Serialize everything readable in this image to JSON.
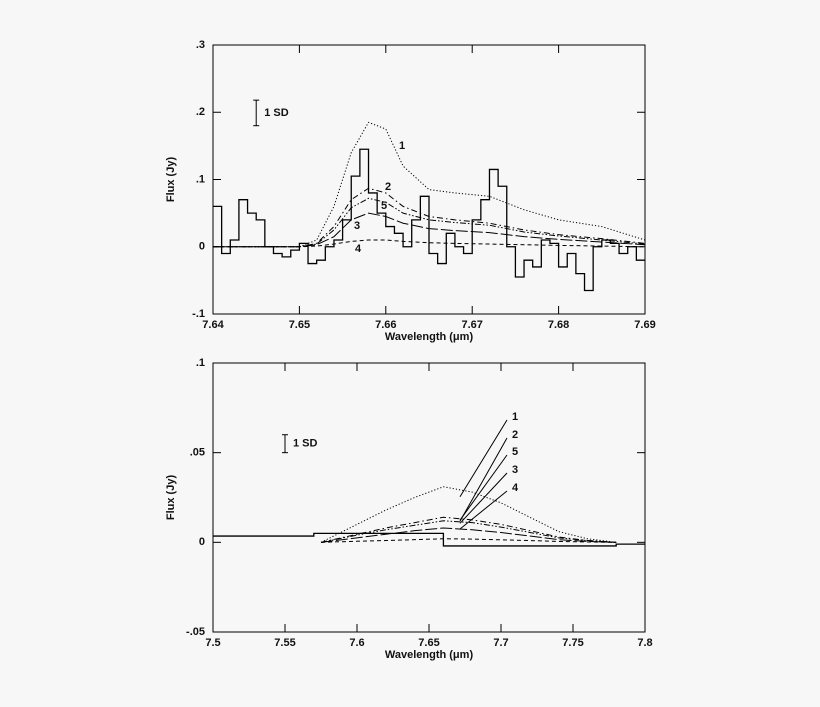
{
  "chart_data": [
    {
      "type": "line",
      "xlabel": "Wavelength (μm)",
      "ylabel": "Flux (Jy)",
      "xlim": [
        7.64,
        7.69
      ],
      "ylim": [
        -0.1,
        0.3
      ],
      "xticks": [
        7.64,
        7.65,
        7.66,
        7.67,
        7.68,
        7.69
      ],
      "yticks": [
        {
          "value": 0.3,
          "label": ".3"
        },
        {
          "value": 0.2,
          "label": ".2"
        },
        {
          "value": 0.1,
          "label": ".1"
        },
        0,
        {
          "value": -0.1,
          "label": "-.1"
        }
      ],
      "series": [
        {
          "style": "steps",
          "color": "#000000",
          "x": [
            7.64,
            7.641,
            7.642,
            7.643,
            7.644,
            7.645,
            7.646,
            7.647,
            7.648,
            7.649,
            7.65,
            7.651,
            7.652,
            7.653,
            7.654,
            7.655,
            7.656,
            7.657,
            7.658,
            7.659,
            7.66,
            7.661,
            7.662,
            7.663,
            7.664,
            7.665,
            7.666,
            7.667,
            7.668,
            7.669,
            7.67,
            7.671,
            7.672,
            7.673,
            7.674,
            7.675,
            7.676,
            7.677,
            7.678,
            7.679,
            7.68,
            7.681,
            7.682,
            7.683,
            7.684,
            7.685,
            7.686,
            7.687,
            7.688,
            7.689
          ],
          "values": [
            0.06,
            -0.01,
            0.01,
            0.07,
            0.05,
            0.04,
            0.0,
            -0.01,
            -0.015,
            -0.005,
            0.005,
            -0.025,
            -0.02,
            0.0,
            0.01,
            0.04,
            0.105,
            0.145,
            0.08,
            0.05,
            0.03,
            0.02,
            0.0,
            0.04,
            0.075,
            -0.01,
            -0.025,
            0.02,
            0.0,
            -0.01,
            0.04,
            0.07,
            0.115,
            0.09,
            0.0,
            -0.045,
            -0.02,
            -0.03,
            0.01,
            0.005,
            -0.03,
            -0.01,
            -0.04,
            -0.065,
            0.0,
            0.01,
            0.005,
            -0.01,
            0.0,
            -0.02
          ]
        },
        {
          "name": "1",
          "style": "dotted",
          "color": "#000000",
          "x": [
            7.64,
            7.65,
            7.652,
            7.654,
            7.656,
            7.658,
            7.66,
            7.662,
            7.665,
            7.668,
            7.672,
            7.676,
            7.68,
            7.685,
            7.69
          ],
          "values": [
            0,
            0,
            0.01,
            0.06,
            0.14,
            0.185,
            0.175,
            0.12,
            0.085,
            0.08,
            0.075,
            0.055,
            0.04,
            0.03,
            0.01
          ]
        },
        {
          "name": "2",
          "style": "dashdot",
          "color": "#000000",
          "x": [
            7.64,
            7.65,
            7.652,
            7.654,
            7.656,
            7.658,
            7.66,
            7.662,
            7.665,
            7.668,
            7.672,
            7.676,
            7.68,
            7.685,
            7.69
          ],
          "values": [
            0,
            0,
            0.005,
            0.03,
            0.07,
            0.087,
            0.08,
            0.06,
            0.045,
            0.04,
            0.035,
            0.025,
            0.018,
            0.012,
            0.005
          ]
        },
        {
          "name": "5",
          "style": "dashdotdot",
          "color": "#000000",
          "x": [
            7.64,
            7.65,
            7.652,
            7.654,
            7.656,
            7.658,
            7.66,
            7.662,
            7.665,
            7.668,
            7.672,
            7.676,
            7.68,
            7.685,
            7.69
          ],
          "values": [
            0,
            0,
            0.004,
            0.025,
            0.058,
            0.072,
            0.066,
            0.05,
            0.04,
            0.036,
            0.032,
            0.022,
            0.016,
            0.01,
            0.004
          ]
        },
        {
          "name": "3",
          "style": "longdash",
          "color": "#000000",
          "x": [
            7.64,
            7.65,
            7.652,
            7.654,
            7.656,
            7.658,
            7.66,
            7.662,
            7.665,
            7.668,
            7.672,
            7.676,
            7.68,
            7.685,
            7.69
          ],
          "values": [
            0,
            0,
            0.003,
            0.015,
            0.04,
            0.05,
            0.045,
            0.035,
            0.027,
            0.024,
            0.021,
            0.015,
            0.011,
            0.007,
            0.003
          ]
        },
        {
          "name": "4",
          "style": "dashed",
          "color": "#000000",
          "x": [
            7.64,
            7.65,
            7.652,
            7.654,
            7.656,
            7.658,
            7.66,
            7.662,
            7.665,
            7.668,
            7.672,
            7.676,
            7.68,
            7.685,
            7.69
          ],
          "values": [
            0,
            0,
            0.001,
            0.004,
            0.008,
            0.01,
            0.01,
            0.008,
            0.006,
            0.005,
            0.004,
            0.003,
            0.002,
            0.001,
            0.0
          ]
        }
      ],
      "annotations": [
        {
          "text": "1 SD",
          "x": 7.645,
          "y": 0.199,
          "error": 0.019
        }
      ]
    },
    {
      "type": "line",
      "xlabel": "Wavelength (μm)",
      "ylabel": "Flux (Jy)",
      "xlim": [
        7.5,
        7.8
      ],
      "ylim": [
        -0.05,
        0.1
      ],
      "xticks": [
        7.5,
        7.55,
        7.6,
        7.65,
        7.7,
        7.75,
        7.8
      ],
      "yticks": [
        {
          "value": 0.1,
          "label": ".1"
        },
        {
          "value": 0.05,
          "label": ".05"
        },
        0,
        {
          "value": -0.05,
          "label": "-.05"
        }
      ],
      "series": [
        {
          "style": "steps",
          "color": "#000000",
          "x": [
            7.5,
            7.57,
            7.66,
            7.78
          ],
          "values": [
            0.0035,
            0.005,
            -0.002,
            -0.001
          ]
        },
        {
          "name": "1",
          "style": "dotted",
          "color": "#000000",
          "x": [
            7.575,
            7.6,
            7.62,
            7.64,
            7.66,
            7.68,
            7.7,
            7.72,
            7.74,
            7.76,
            7.78
          ],
          "values": [
            0,
            0.01,
            0.018,
            0.025,
            0.031,
            0.028,
            0.022,
            0.014,
            0.006,
            0.002,
            0
          ]
        },
        {
          "name": "2",
          "style": "dashdot",
          "color": "#000000",
          "x": [
            7.575,
            7.6,
            7.62,
            7.64,
            7.66,
            7.68,
            7.7,
            7.72,
            7.74,
            7.76,
            7.78
          ],
          "values": [
            0,
            0.0045,
            0.008,
            0.011,
            0.014,
            0.0125,
            0.01,
            0.0065,
            0.003,
            0.001,
            0
          ]
        },
        {
          "name": "5",
          "style": "dashdotdot",
          "color": "#000000",
          "x": [
            7.575,
            7.6,
            7.62,
            7.64,
            7.66,
            7.68,
            7.7,
            7.72,
            7.74,
            7.76,
            7.78
          ],
          "values": [
            0,
            0.004,
            0.007,
            0.0095,
            0.012,
            0.011,
            0.0085,
            0.0055,
            0.0025,
            0.001,
            0
          ]
        },
        {
          "name": "3",
          "style": "longdash",
          "color": "#000000",
          "x": [
            7.575,
            7.6,
            7.62,
            7.64,
            7.66,
            7.68,
            7.7,
            7.72,
            7.74,
            7.76,
            7.78
          ],
          "values": [
            0,
            0.0025,
            0.0045,
            0.0065,
            0.008,
            0.007,
            0.0055,
            0.0035,
            0.0015,
            0.0005,
            0
          ]
        },
        {
          "name": "4",
          "style": "dashed",
          "color": "#000000",
          "x": [
            7.575,
            7.6,
            7.62,
            7.64,
            7.66,
            7.68,
            7.7,
            7.72,
            7.74,
            7.76,
            7.78
          ],
          "values": [
            0,
            0.0006,
            0.001,
            0.0015,
            0.002,
            0.0018,
            0.0014,
            0.001,
            0.0005,
            0.0002,
            0
          ]
        }
      ],
      "annotations": [
        {
          "text": "1 SD",
          "x": 7.55,
          "y": 0.055,
          "error": 0.005
        }
      ]
    }
  ]
}
